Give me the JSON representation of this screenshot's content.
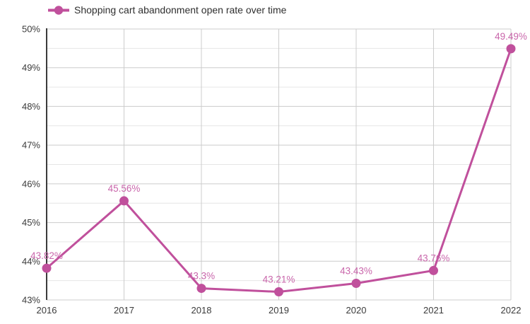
{
  "legend": {
    "label": "Shopping cart abandonment open rate over time",
    "position": "top-left"
  },
  "colors": {
    "line": "#c0509c",
    "marker": "#c0509c",
    "value_label": "#c966ab",
    "axis_text": "#3b3b3b",
    "legend_text": "#2f2f2f",
    "axis_line": "#3b3b3b",
    "grid_major": "#cccccc",
    "grid_minor": "#e6e6e6",
    "background": "#ffffff"
  },
  "chart_data": {
    "type": "line",
    "title": "",
    "xlabel": "",
    "ylabel": "",
    "categories": [
      "2016",
      "2017",
      "2018",
      "2019",
      "2020",
      "2021",
      "2022"
    ],
    "series": [
      {
        "name": "Shopping cart abandonment open rate over time",
        "values": [
          43.82,
          45.56,
          43.3,
          43.21,
          43.43,
          43.76,
          49.49
        ]
      }
    ],
    "point_labels": [
      "43.82%",
      "45.56%",
      "43.3%",
      "43.21%",
      "43.43%",
      "43.76%",
      "49.49%"
    ],
    "ylim": [
      43,
      50
    ],
    "y_tick_labels_top_to_bottom": [
      "50%",
      "49%",
      "48%",
      "47%",
      "46%",
      "45%",
      "44%",
      "43%"
    ],
    "y_major_step": 1,
    "y_minor_step": 0.5,
    "grid": true,
    "legend_position": "top-left"
  }
}
